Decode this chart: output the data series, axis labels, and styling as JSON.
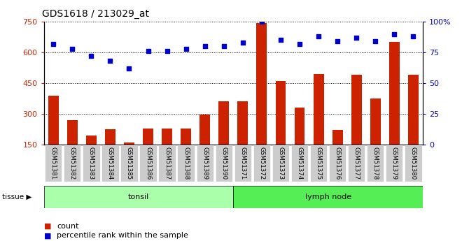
{
  "title": "GDS1618 / 213029_at",
  "samples": [
    "GSM51381",
    "GSM51382",
    "GSM51383",
    "GSM51384",
    "GSM51385",
    "GSM51386",
    "GSM51387",
    "GSM51388",
    "GSM51389",
    "GSM51390",
    "GSM51371",
    "GSM51372",
    "GSM51373",
    "GSM51374",
    "GSM51375",
    "GSM51376",
    "GSM51377",
    "GSM51378",
    "GSM51379",
    "GSM51380"
  ],
  "counts": [
    390,
    270,
    195,
    225,
    160,
    230,
    230,
    230,
    295,
    360,
    360,
    745,
    460,
    330,
    495,
    220,
    490,
    375,
    650,
    490
  ],
  "percentiles": [
    82,
    78,
    72,
    68,
    62,
    76,
    76,
    78,
    80,
    80,
    83,
    100,
    85,
    82,
    88,
    84,
    87,
    84,
    90,
    88
  ],
  "tonsil_count": 10,
  "lymph_count": 10,
  "ylim_left": [
    150,
    750
  ],
  "ylim_right": [
    0,
    100
  ],
  "yticks_left": [
    150,
    300,
    450,
    600,
    750
  ],
  "yticks_right": [
    0,
    25,
    50,
    75,
    100
  ],
  "bar_color": "#cc2200",
  "dot_color": "#0000cc",
  "bar_bottom": 150,
  "tissue_label": "tissue",
  "legend_count": "count",
  "legend_percentile": "percentile rank within the sample",
  "tonsil_color": "#aaffaa",
  "lymph_color": "#55ee55",
  "xticklabel_bg": "#cccccc"
}
